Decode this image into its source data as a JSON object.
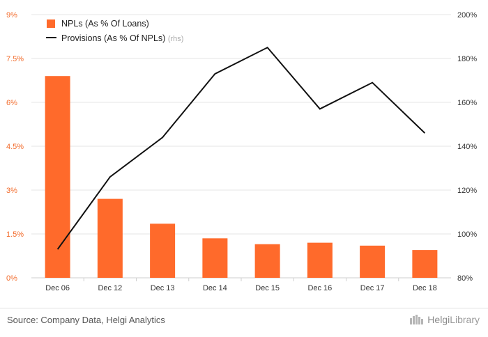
{
  "chart_data": {
    "type": "bar",
    "categories": [
      "Dec 06",
      "Dec 12",
      "Dec 13",
      "Dec 14",
      "Dec 15",
      "Dec 16",
      "Dec 17",
      "Dec 18"
    ],
    "series": [
      {
        "name": "NPLs (As % Of Loans)",
        "type": "bar",
        "axis": "left",
        "color": "#ff6a2b",
        "values": [
          6.9,
          2.7,
          1.85,
          1.35,
          1.15,
          1.2,
          1.1,
          0.95
        ]
      },
      {
        "name": "Provisions (As % Of NPLs)",
        "type": "line",
        "axis": "right",
        "color": "#111111",
        "values": [
          93,
          126,
          144,
          173,
          185,
          157,
          169,
          146
        ]
      }
    ],
    "left_axis": {
      "ylim": [
        0,
        9
      ],
      "ticks": [
        "0%",
        "1.5%",
        "3%",
        "4.5%",
        "6%",
        "7.5%",
        "9%"
      ],
      "color": "#f26b2b"
    },
    "right_axis": {
      "ylim": [
        80,
        200
      ],
      "ticks": [
        "80%",
        "100%",
        "120%",
        "140%",
        "160%",
        "180%",
        "200%"
      ]
    },
    "legend": {
      "placement": "top-left",
      "rhs_note": "(rhs)"
    },
    "grid": true
  },
  "footer": {
    "source": "Source: Company Data, Helgi Analytics",
    "brand_prefix": "Helgi",
    "brand_suffix": "Library",
    "brand_icon": "helgi-library-logo-icon"
  }
}
